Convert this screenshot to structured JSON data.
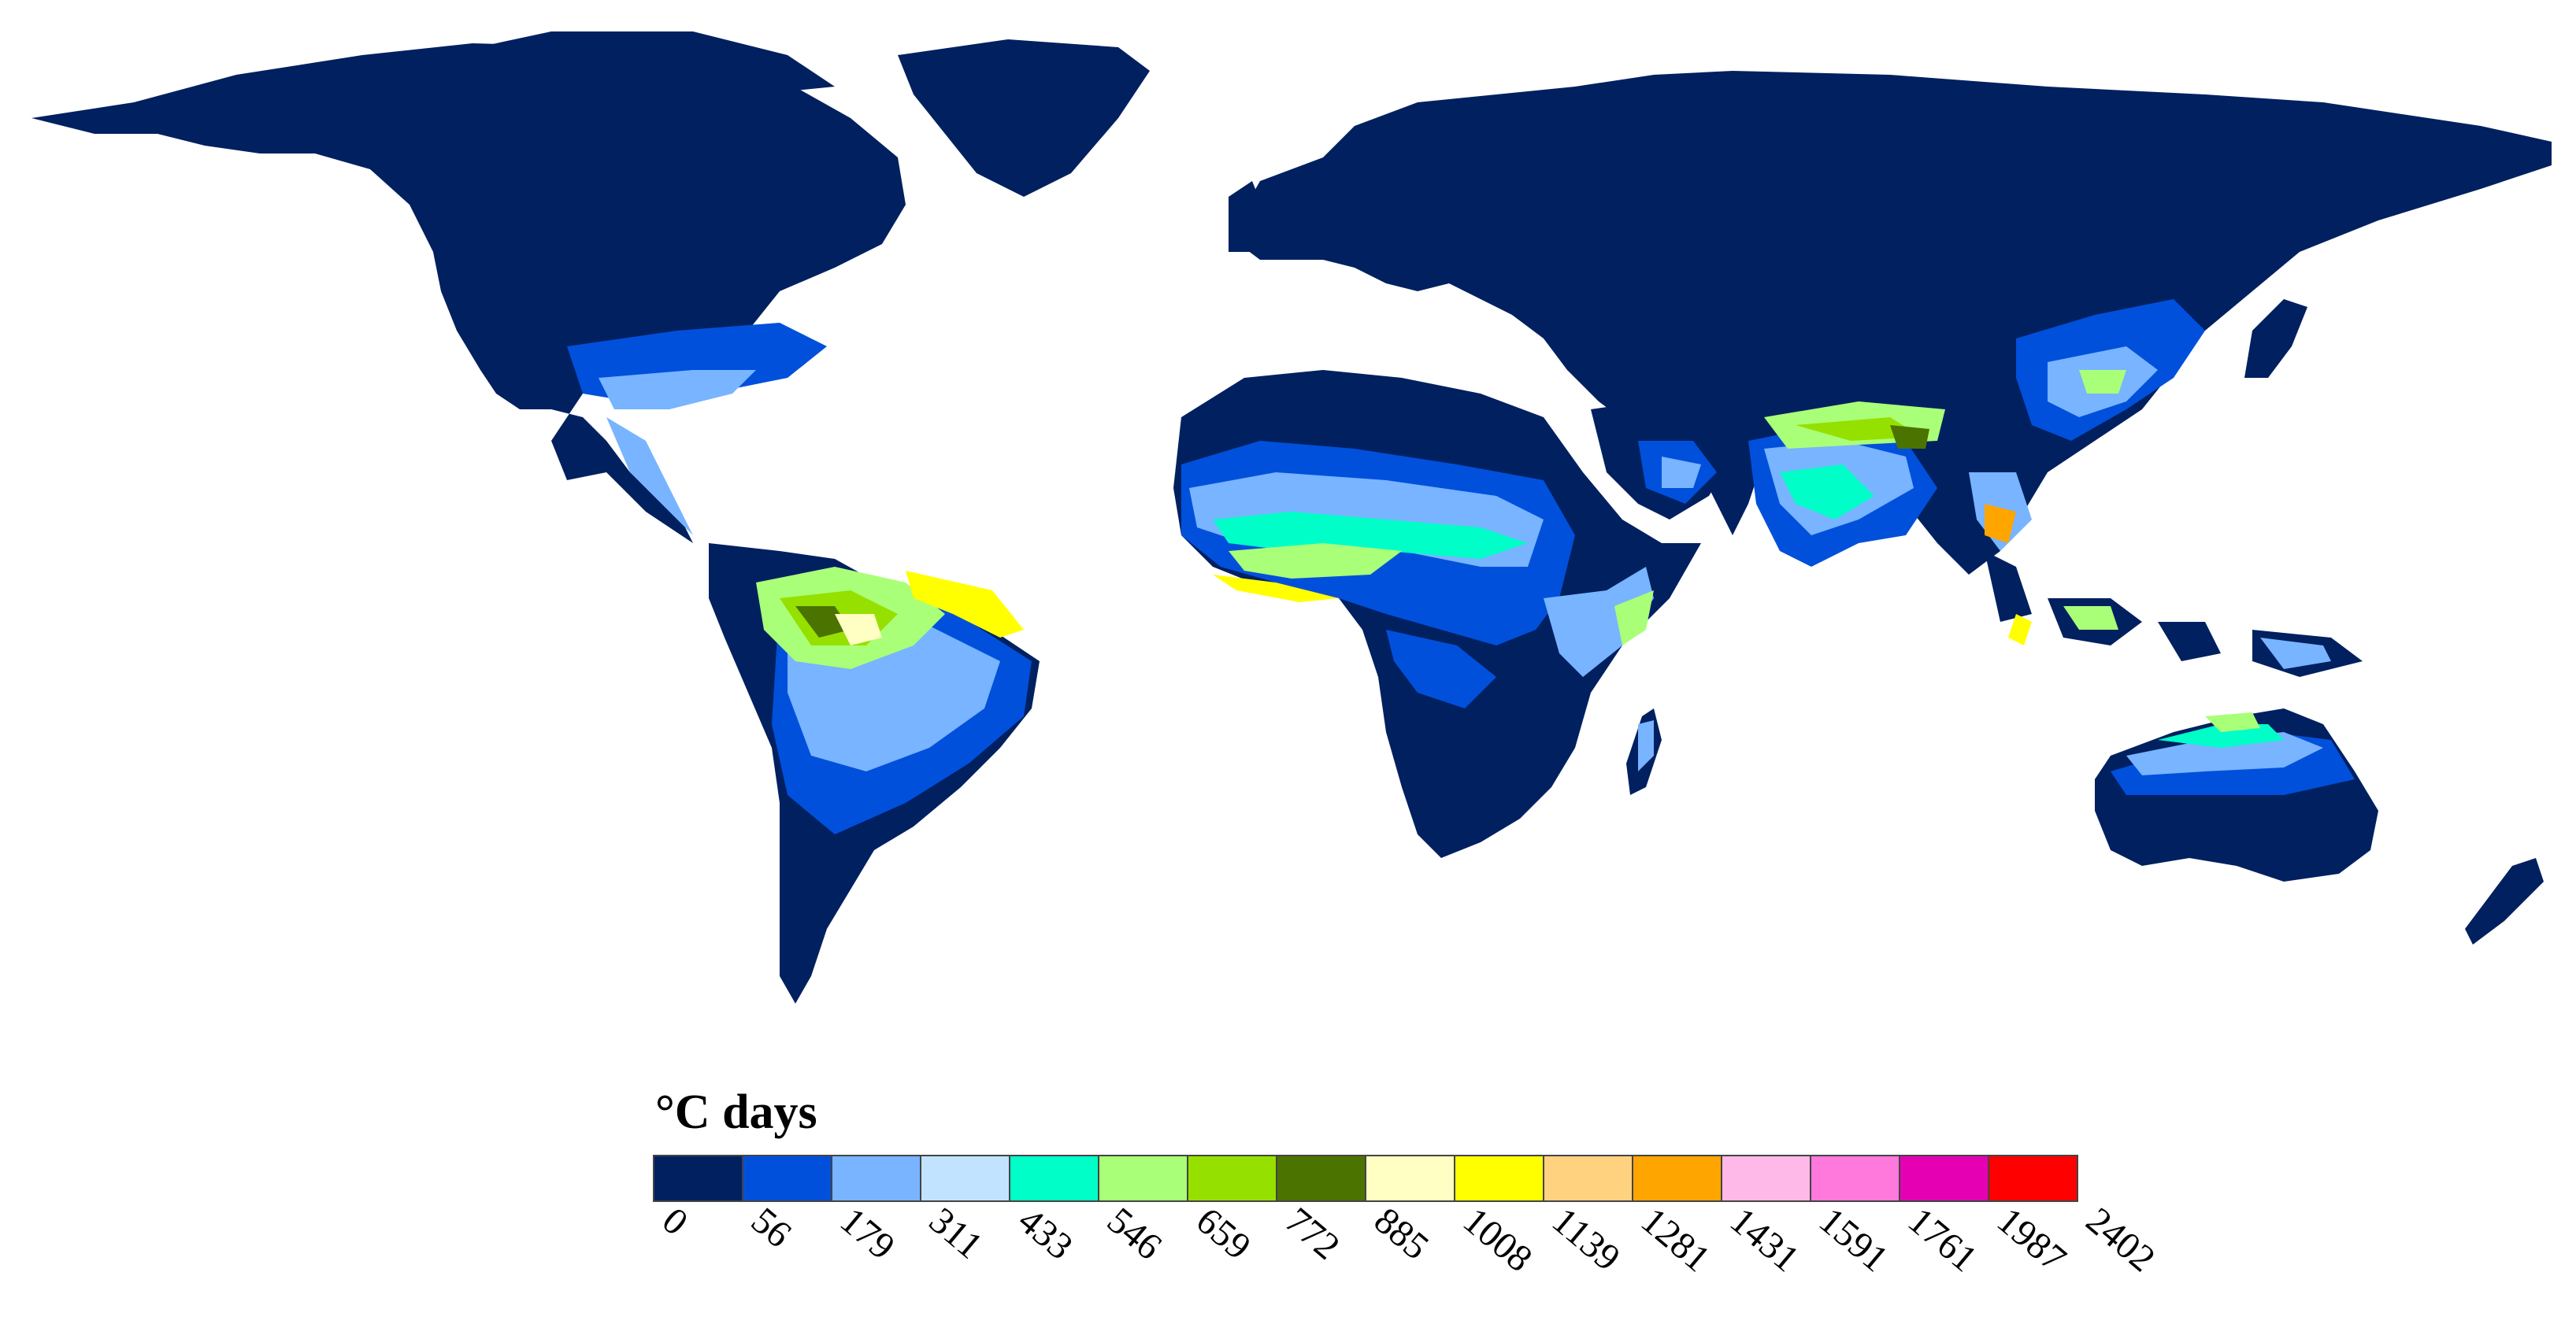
{
  "legend": {
    "title": "°C days",
    "colors": [
      "#002060",
      "#0050dc",
      "#78b4ff",
      "#c2e3ff",
      "#00ffc8",
      "#aaff78",
      "#96e000",
      "#4b7300",
      "#ffffc3",
      "#ffff00",
      "#ffd280",
      "#ffa500",
      "#ffb9e8",
      "#ff78dc",
      "#e600b4",
      "#ff0000"
    ],
    "ticks": [
      "0",
      "56",
      "179",
      "311",
      "433",
      "546",
      "659",
      "772",
      "885",
      "1008",
      "1139",
      "1281",
      "1431",
      "1591",
      "1761",
      "1987",
      "2402"
    ]
  },
  "map": {
    "ocean_color": "#ffffff",
    "land_base_color": "#002060"
  }
}
